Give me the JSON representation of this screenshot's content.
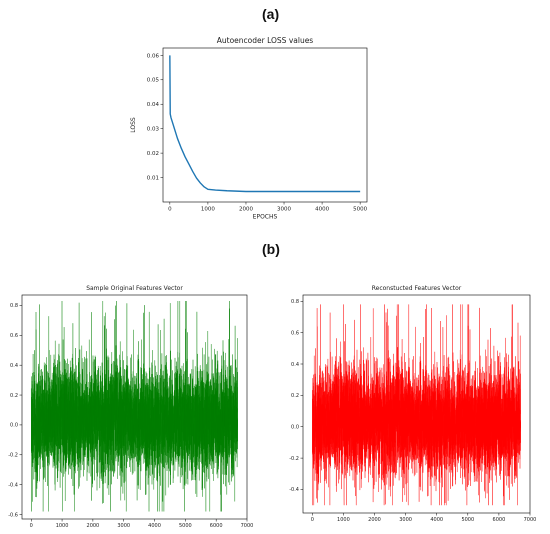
{
  "panel_labels": {
    "a": "(a)",
    "b": "(b)"
  },
  "chart_data": [
    {
      "type": "line",
      "title": "Autoencoder LOSS values",
      "xlabel": "EPOCHS",
      "ylabel": "LOSS",
      "xlim": [
        -180,
        5180
      ],
      "ylim": [
        0.0,
        0.063
      ],
      "xticks": [
        0,
        1000,
        2000,
        3000,
        4000,
        5000
      ],
      "yticks": [
        0.01,
        0.02,
        0.03,
        0.04,
        0.05,
        0.06
      ],
      "ytick_labels": [
        "0.01",
        "0.02",
        "0.03",
        "0.04",
        "0.05",
        "0.06"
      ],
      "series": [
        {
          "color": "#1f77b4",
          "x": [
            0,
            10,
            30,
            60,
            100,
            200,
            300,
            400,
            500,
            600,
            700,
            800,
            900,
            1000,
            1200,
            1500,
            2000,
            2500,
            3000,
            3500,
            4000,
            4500,
            5000
          ],
          "y": [
            0.06,
            0.036,
            0.0345,
            0.033,
            0.031,
            0.026,
            0.022,
            0.0185,
            0.0155,
            0.0125,
            0.0098,
            0.0078,
            0.0062,
            0.0052,
            0.0049,
            0.0046,
            0.0043,
            0.0043,
            0.0043,
            0.0043,
            0.0043,
            0.0043,
            0.0043
          ]
        }
      ]
    },
    {
      "type": "line",
      "title": "Sample Original Features Vector",
      "xlim": [
        -300,
        7000
      ],
      "ylim": [
        -0.63,
        0.87
      ],
      "xticks": [
        0,
        1000,
        2000,
        3000,
        4000,
        5000,
        6000,
        7000
      ],
      "yticks": [
        -0.6,
        -0.4,
        -0.2,
        0.0,
        0.2,
        0.4,
        0.6,
        0.8
      ],
      "ytick_labels": [
        "-0.6",
        "-0.4",
        "-0.2",
        "0.0",
        "0.2",
        "0.4",
        "0.6",
        "0.8"
      ],
      "series": [
        {
          "color": "#008000",
          "n_points": 6700,
          "seed": 7,
          "mean": 0.03,
          "sd": 0.2,
          "min": -0.58,
          "max": 0.83
        }
      ]
    },
    {
      "type": "line",
      "title": "Reconstucted Features Vector",
      "xlim": [
        -300,
        7000
      ],
      "ylim": [
        -0.55,
        0.84
      ],
      "xticks": [
        0,
        1000,
        2000,
        3000,
        4000,
        5000,
        6000,
        7000
      ],
      "yticks": [
        -0.4,
        -0.2,
        0.0,
        0.2,
        0.4,
        0.6,
        0.8
      ],
      "ytick_labels": [
        "-0.4",
        "-0.2",
        "0.0",
        "0.2",
        "0.4",
        "0.6",
        "0.8"
      ],
      "series": [
        {
          "color": "#ff0000",
          "n_points": 6700,
          "seed": 7,
          "mean": 0.03,
          "sd": 0.19,
          "min": -0.5,
          "max": 0.78
        }
      ]
    }
  ]
}
